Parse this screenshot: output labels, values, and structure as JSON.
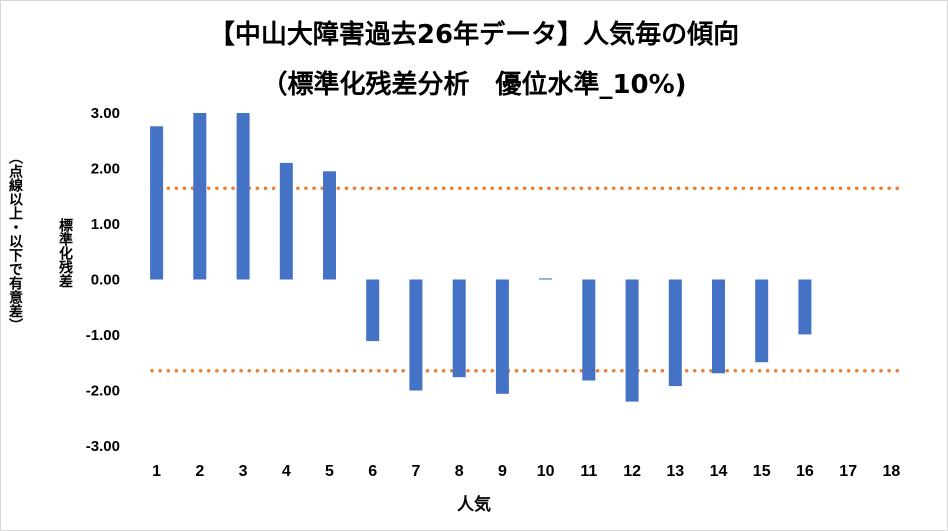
{
  "chart_data": {
    "type": "bar",
    "title": "【中山大障害過去26年データ】人気毎の傾向",
    "subtitle": "（標準化残差分析　優位水準_10%)",
    "xlabel": "人気",
    "ylabel": "標準化残差",
    "ylabel_note": "（点線以上・以下で有意差）",
    "categories": [
      "1",
      "2",
      "3",
      "4",
      "5",
      "6",
      "7",
      "8",
      "9",
      "10",
      "11",
      "12",
      "13",
      "14",
      "15",
      "16",
      "17",
      "18"
    ],
    "values": [
      2.76,
      3.0,
      3.0,
      2.1,
      1.95,
      -1.11,
      -2.0,
      -1.76,
      -2.06,
      0.02,
      -1.82,
      -2.2,
      -1.92,
      -1.69,
      -1.49,
      -0.99,
      0,
      0
    ],
    "ylim": [
      -3.0,
      3.0
    ],
    "yticks": [
      "3.00",
      "2.00",
      "1.00",
      "0.00",
      "-1.00",
      "-2.00",
      "-3.00"
    ],
    "reference_lines": [
      1.645,
      -1.645
    ],
    "bar_color": "#4472c4",
    "reference_color": "#ed7d31",
    "grid": false
  }
}
